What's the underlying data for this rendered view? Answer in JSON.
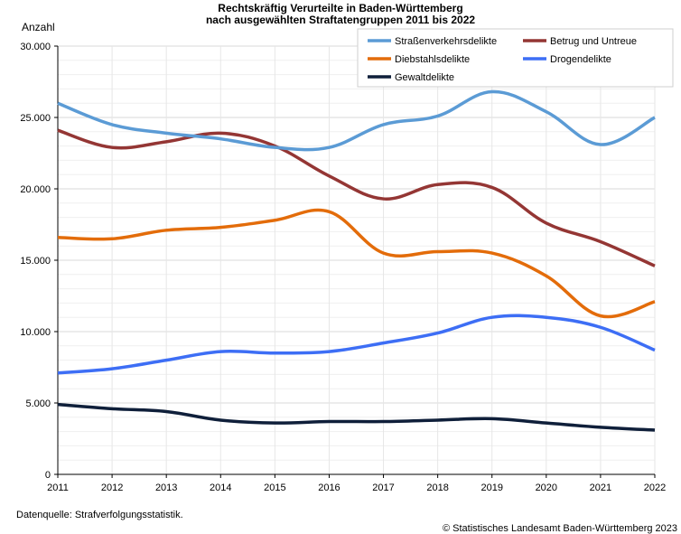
{
  "chart_data": {
    "type": "line",
    "title_lines": [
      "Rechtskräftig Verurteilte in Baden-Württemberg",
      "nach ausgewählten Straftatengruppen 2011 bis 2022"
    ],
    "ylabel": "Anzahl",
    "xlabel": "",
    "ylim": [
      0,
      30000
    ],
    "yticks": [
      0,
      5000,
      10000,
      15000,
      20000,
      25000,
      30000
    ],
    "ytick_labels": [
      "0",
      "5.000",
      "10.000",
      "15.000",
      "20.000",
      "25.000",
      "30.000"
    ],
    "categories": [
      "2011",
      "2012",
      "2013",
      "2014",
      "2015",
      "2016",
      "2017",
      "2018",
      "2019",
      "2020",
      "2021",
      "2022"
    ],
    "grid": true,
    "legend_position": "top-right",
    "series": [
      {
        "name": "Straßenverkehrsdelikte",
        "color": "#5b9bd5",
        "values": [
          26000,
          24500,
          23900,
          23500,
          22900,
          22900,
          24500,
          25100,
          26800,
          25400,
          23100,
          25000
        ]
      },
      {
        "name": "Betrug und Untreue",
        "color": "#943634",
        "values": [
          24100,
          22900,
          23300,
          23900,
          23000,
          20900,
          19300,
          20300,
          20100,
          17600,
          16300,
          14600
        ]
      },
      {
        "name": "Diebstahlsdelikte",
        "color": "#e36c0a",
        "values": [
          16600,
          16500,
          17100,
          17300,
          17800,
          18400,
          15500,
          15600,
          15500,
          13900,
          11100,
          12100
        ]
      },
      {
        "name": "Drogendelikte",
        "color": "#3d6ef5",
        "values": [
          7100,
          7400,
          8000,
          8600,
          8500,
          8600,
          9200,
          9900,
          11000,
          11000,
          10300,
          8700
        ]
      },
      {
        "name": "Gewaltdelikte",
        "color": "#0f1f3a",
        "values": [
          4900,
          4600,
          4400,
          3800,
          3600,
          3700,
          3700,
          3800,
          3900,
          3600,
          3300,
          3100
        ]
      }
    ]
  },
  "source_text": "Datenquelle: Strafverfolgungsstatistik.",
  "copyright_text": "© Statistisches Landesamt Baden-Württemberg 2023"
}
